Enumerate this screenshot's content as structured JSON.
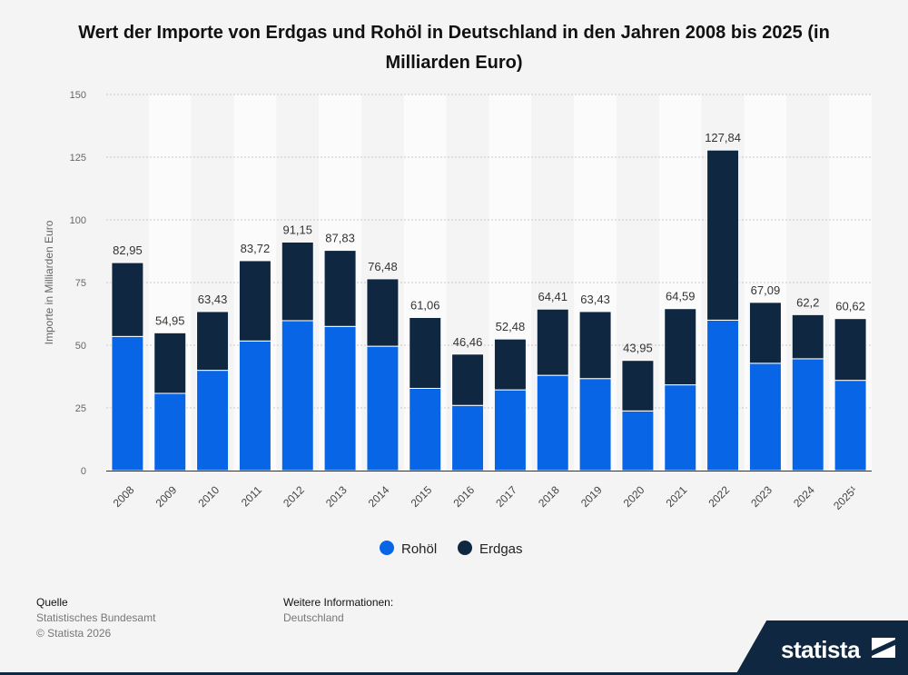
{
  "chart_data": {
    "type": "bar",
    "stacked": true,
    "title": "Wert der Importe von Erdgas und Rohöl in Deutschland in den Jahren 2008 bis 2025 (in Milliarden Euro)",
    "xlabel": "",
    "ylabel": "Importe in Milliarden Euro",
    "ylim": [
      0,
      150
    ],
    "yticks": [
      0,
      25,
      50,
      75,
      100,
      125,
      150
    ],
    "grid": true,
    "legend_position": "bottom",
    "categories": [
      "2008",
      "2009",
      "2010",
      "2011",
      "2012",
      "2013",
      "2014",
      "2015",
      "2016",
      "2017",
      "2018",
      "2019",
      "2020",
      "2021",
      "2022",
      "2023",
      "2024",
      "2025¹"
    ],
    "totals": [
      "82,95",
      "54,95",
      "63,43",
      "83,72",
      "91,15",
      "87,83",
      "76,48",
      "61,06",
      "46,46",
      "52,48",
      "64,41",
      "63,43",
      "43,95",
      "64,59",
      "127,84",
      "67,09",
      "62,2",
      "60,62"
    ],
    "series": [
      {
        "name": "Rohöl",
        "color": "#0866e6",
        "values": [
          53.5,
          30.8,
          40.0,
          51.7,
          59.8,
          57.5,
          49.6,
          32.8,
          26.0,
          32.2,
          38.0,
          36.7,
          23.8,
          34.2,
          60.0,
          42.8,
          44.6,
          36.0
        ]
      },
      {
        "name": "Erdgas",
        "color": "#0f2740",
        "values": [
          29.45,
          24.15,
          23.43,
          32.02,
          31.35,
          30.33,
          26.88,
          28.26,
          20.46,
          20.28,
          26.41,
          26.73,
          20.15,
          30.39,
          67.84,
          24.29,
          17.6,
          24.62
        ]
      }
    ]
  },
  "footer": {
    "source_label": "Quelle",
    "source_line1": "Statistisches Bundesamt",
    "source_line2": "© Statista 2026",
    "info_label": "Weitere Informationen:",
    "info_line1": "Deutschland"
  },
  "brand": "statista"
}
